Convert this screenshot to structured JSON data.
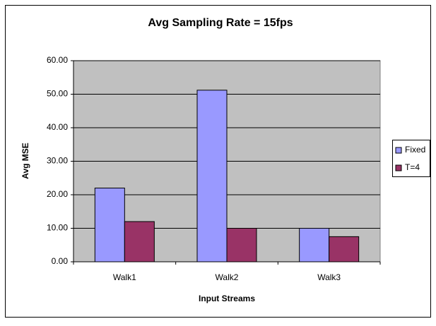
{
  "chart_data": {
    "type": "bar",
    "title": "Avg Sampling Rate = 15fps",
    "xlabel": "Input Streams",
    "ylabel": "Avg MSE",
    "categories": [
      "Walk1",
      "Walk2",
      "Walk3"
    ],
    "series": [
      {
        "name": "Fixed",
        "color": "#9999ff",
        "values": [
          22,
          51.2,
          10
        ]
      },
      {
        "name": "T=4",
        "color": "#993366",
        "values": [
          12,
          10,
          7.5
        ]
      }
    ],
    "ylim": [
      0,
      60
    ],
    "yticks": [
      {
        "value": 0,
        "label": "0.00"
      },
      {
        "value": 10,
        "label": "10.00"
      },
      {
        "value": 20,
        "label": "20.00"
      },
      {
        "value": 30,
        "label": "30.00"
      },
      {
        "value": 40,
        "label": "40.00"
      },
      {
        "value": 50,
        "label": "50.00"
      },
      {
        "value": 60,
        "label": "60.00"
      }
    ],
    "grid": true,
    "legend": "right"
  }
}
